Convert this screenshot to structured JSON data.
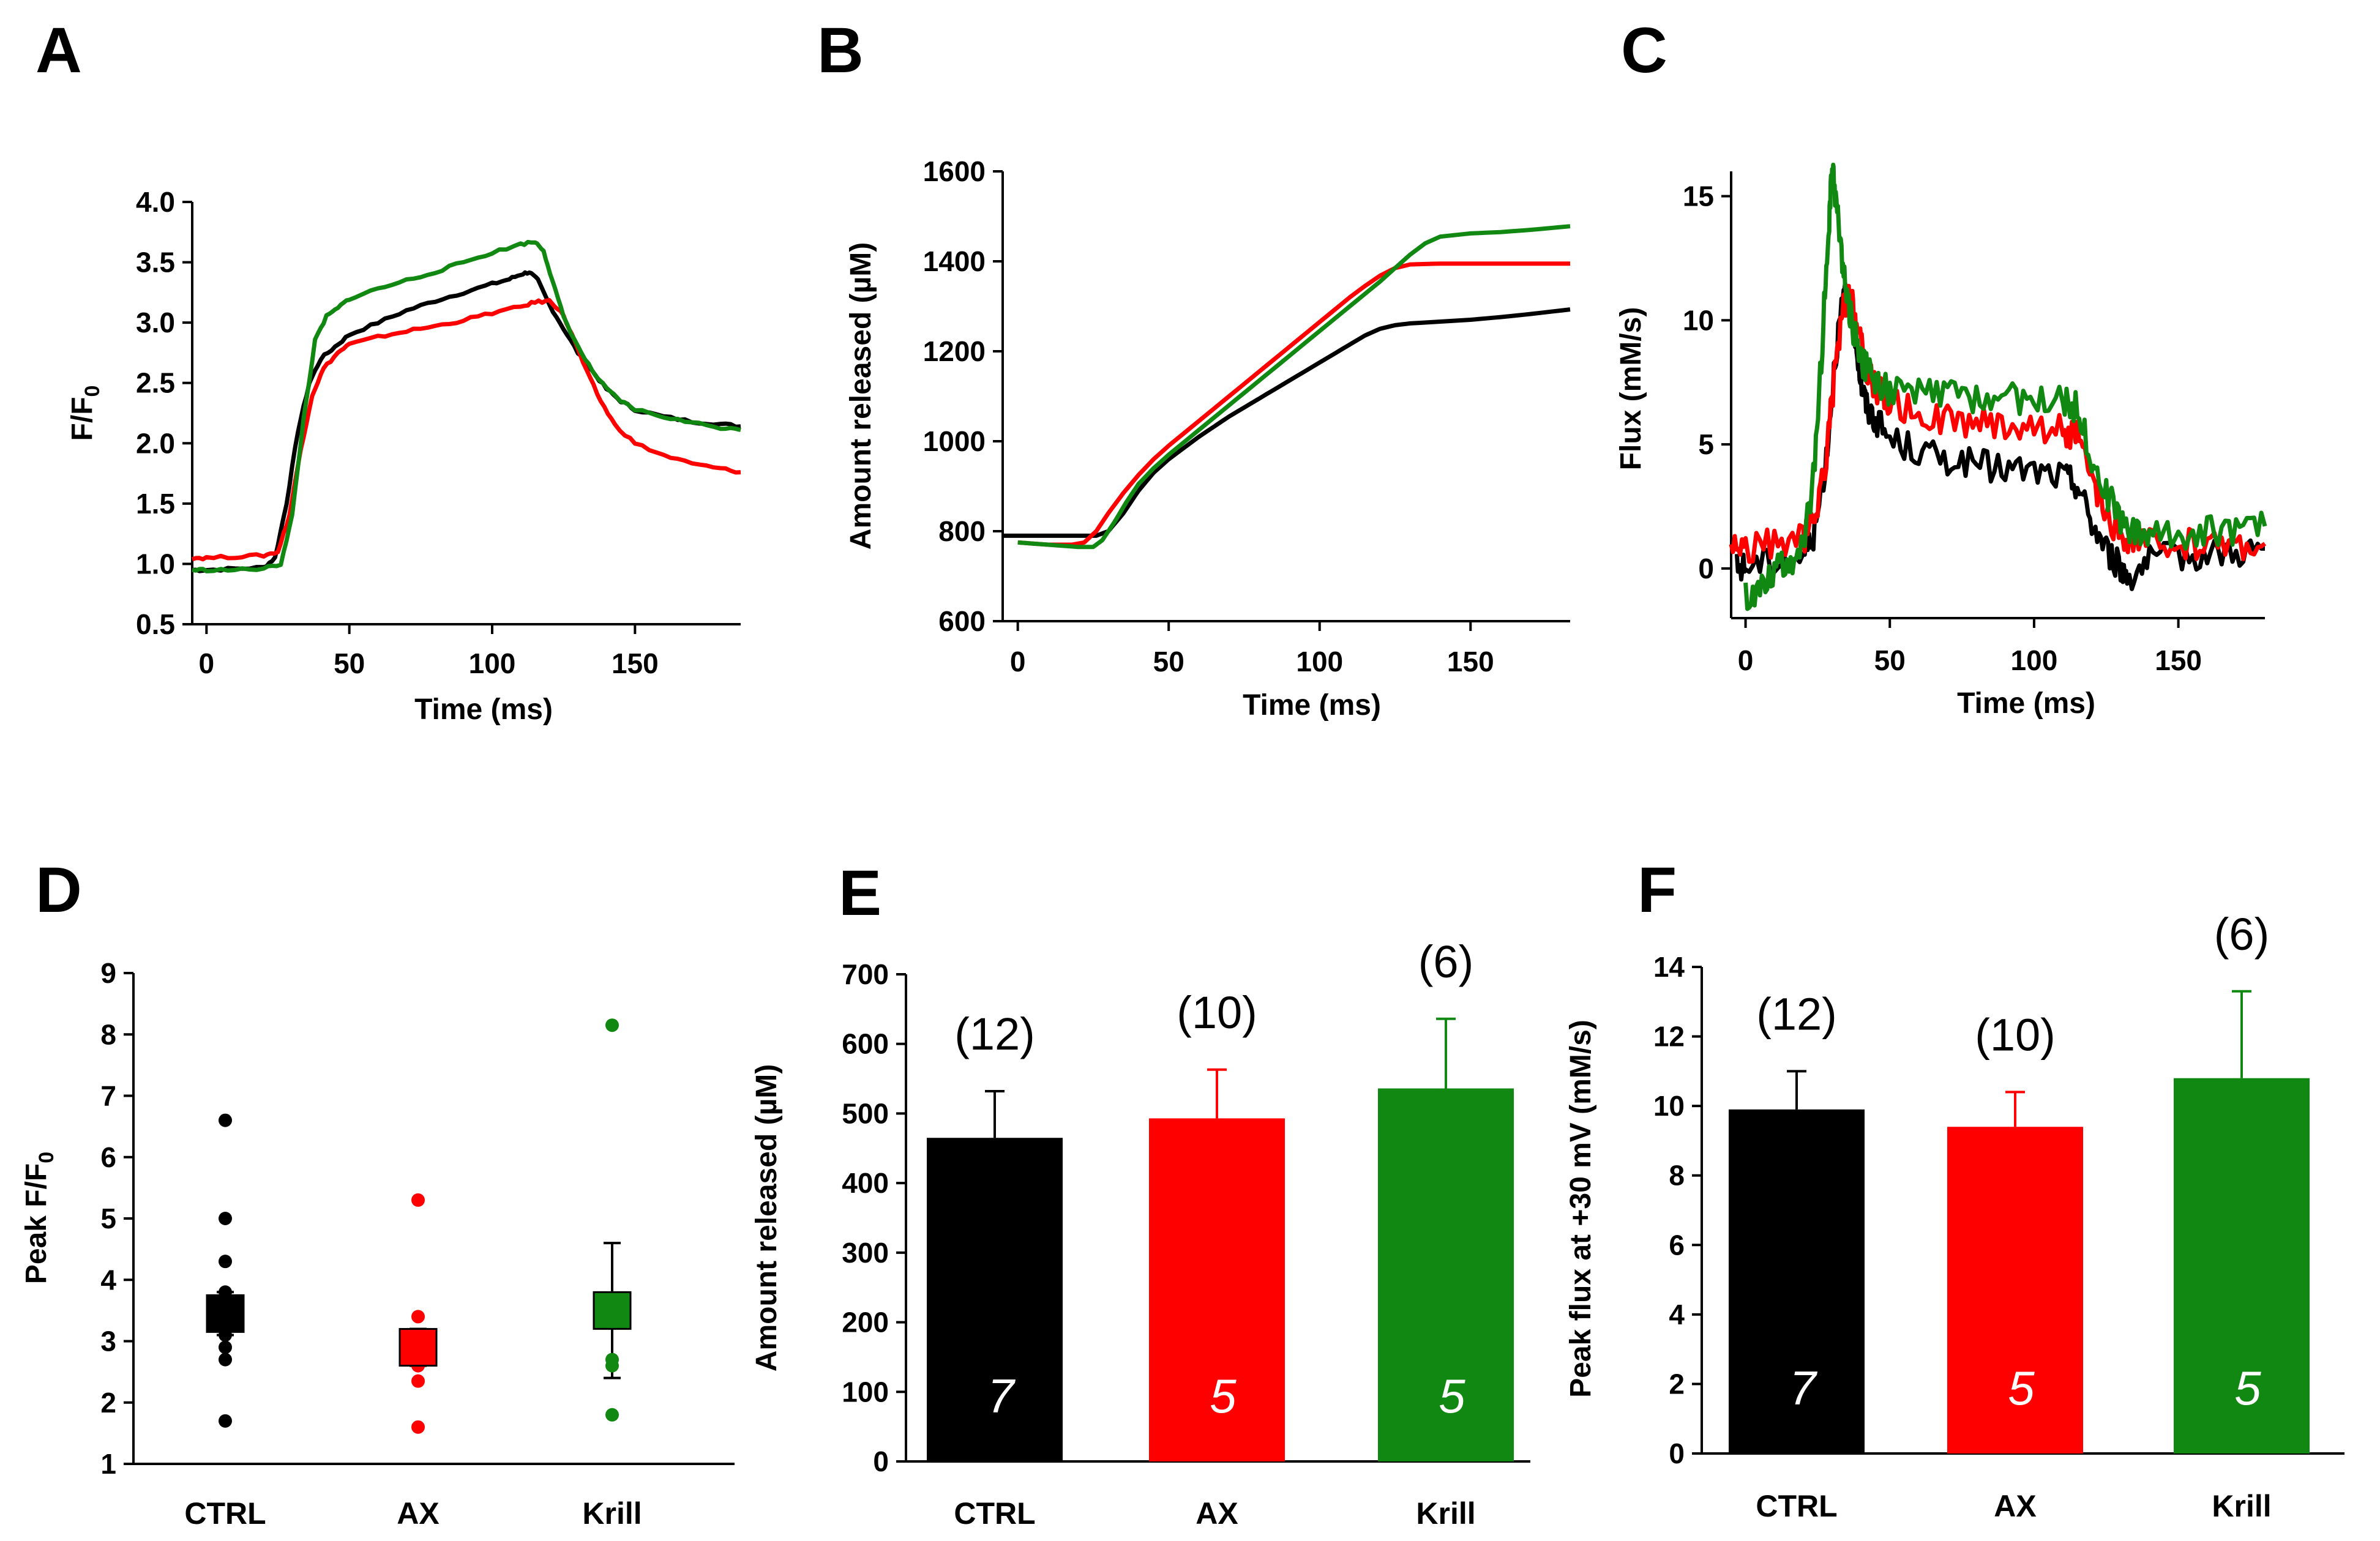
{
  "colors": {
    "CTRL": "#000000",
    "AX": "#ff0000",
    "Krill": "#118811"
  },
  "chart_data": [
    {
      "id": "A",
      "panel_label": "A",
      "type": "line",
      "xlabel": "Time (ms)",
      "ylabel": "F/F0",
      "ylabel_main": "F/F",
      "ylabel_sub": "0",
      "xlim": [
        -5,
        187
      ],
      "ylim": [
        0.5,
        4.0
      ],
      "xticks": [
        0,
        50,
        100,
        150
      ],
      "yticks": [
        0.5,
        1.0,
        1.5,
        2.0,
        2.5,
        3.0,
        3.5,
        4.0
      ],
      "ytick_labels": [
        "0.5",
        "1.0",
        "1.5",
        "2.0",
        "2.5",
        "3.0",
        "3.5",
        "4.0"
      ],
      "series": [
        {
          "name": "CTRL",
          "color": "#000000",
          "x": [
            -5,
            0,
            10,
            20,
            24,
            28,
            32,
            36,
            40,
            45,
            50,
            60,
            70,
            80,
            90,
            100,
            106,
            110,
            113,
            116,
            120,
            125,
            130,
            135,
            140,
            145,
            150,
            160,
            170,
            180,
            187
          ],
          "y": [
            0.95,
            0.95,
            0.96,
            0.97,
            1.05,
            1.5,
            2.1,
            2.5,
            2.7,
            2.8,
            2.9,
            3.0,
            3.1,
            3.18,
            3.25,
            3.32,
            3.36,
            3.4,
            3.42,
            3.35,
            3.15,
            2.95,
            2.75,
            2.6,
            2.45,
            2.35,
            2.28,
            2.22,
            2.18,
            2.16,
            2.14
          ]
        },
        {
          "name": "AX",
          "color": "#ff0000",
          "x": [
            -5,
            0,
            10,
            20,
            25,
            29,
            33,
            37,
            41,
            46,
            50,
            60,
            70,
            80,
            90,
            100,
            110,
            115,
            120,
            124,
            128,
            133,
            138,
            143,
            150,
            160,
            170,
            180,
            187
          ],
          "y": [
            1.05,
            1.05,
            1.06,
            1.07,
            1.1,
            1.4,
            1.95,
            2.4,
            2.62,
            2.75,
            2.82,
            2.88,
            2.93,
            2.97,
            3.02,
            3.08,
            3.13,
            3.17,
            3.18,
            3.1,
            2.9,
            2.6,
            2.35,
            2.15,
            2.0,
            1.9,
            1.83,
            1.79,
            1.76
          ]
        },
        {
          "name": "Krill",
          "color": "#118811",
          "x": [
            -5,
            0,
            10,
            20,
            26,
            30,
            34,
            38,
            42,
            46,
            50,
            60,
            70,
            80,
            90,
            100,
            110,
            115,
            118,
            121,
            125,
            130,
            135,
            140,
            145,
            150,
            160,
            170,
            180,
            187
          ],
          "y": [
            0.95,
            0.95,
            0.95,
            0.96,
            1.0,
            1.4,
            2.2,
            2.85,
            3.05,
            3.12,
            3.2,
            3.28,
            3.35,
            3.42,
            3.5,
            3.58,
            3.65,
            3.67,
            3.6,
            3.35,
            3.05,
            2.8,
            2.6,
            2.45,
            2.35,
            2.28,
            2.22,
            2.17,
            2.13,
            2.11
          ]
        }
      ]
    },
    {
      "id": "B",
      "panel_label": "B",
      "type": "line",
      "xlabel": "Time (ms)",
      "ylabel": "Amount released (µM)",
      "xlim": [
        -5,
        183
      ],
      "ylim": [
        600,
        1600
      ],
      "xticks": [
        0,
        50,
        100,
        150
      ],
      "yticks": [
        600,
        800,
        1000,
        1200,
        1400,
        1600
      ],
      "series": [
        {
          "name": "CTRL",
          "color": "#000000",
          "x": [
            -5,
            0,
            20,
            26,
            30,
            35,
            40,
            45,
            50,
            60,
            70,
            80,
            90,
            100,
            110,
            115,
            120,
            125,
            130,
            140,
            150,
            160,
            170,
            183
          ],
          "y": [
            790,
            790,
            790,
            790,
            800,
            840,
            890,
            930,
            960,
            1010,
            1055,
            1095,
            1135,
            1175,
            1215,
            1235,
            1250,
            1258,
            1262,
            1266,
            1270,
            1276,
            1283,
            1293
          ]
        },
        {
          "name": "AX",
          "color": "#ff0000",
          "x": [
            0,
            10,
            18,
            22,
            26,
            30,
            35,
            40,
            45,
            50,
            60,
            70,
            80,
            90,
            100,
            110,
            115,
            120,
            125,
            130,
            140,
            150,
            160,
            170,
            183
          ],
          "y": [
            775,
            770,
            770,
            775,
            800,
            840,
            885,
            925,
            960,
            990,
            1045,
            1100,
            1155,
            1210,
            1265,
            1320,
            1345,
            1368,
            1385,
            1393,
            1395,
            1395,
            1395,
            1395,
            1395
          ]
        },
        {
          "name": "Krill",
          "color": "#118811",
          "x": [
            0,
            10,
            20,
            25,
            28,
            32,
            36,
            40,
            45,
            50,
            60,
            70,
            80,
            90,
            100,
            110,
            120,
            125,
            130,
            135,
            140,
            150,
            160,
            170,
            183
          ],
          "y": [
            775,
            770,
            765,
            765,
            780,
            820,
            865,
            905,
            940,
            970,
            1025,
            1080,
            1135,
            1190,
            1245,
            1300,
            1355,
            1385,
            1415,
            1440,
            1455,
            1462,
            1465,
            1470,
            1478
          ]
        }
      ]
    },
    {
      "id": "C",
      "panel_label": "C",
      "type": "line",
      "xlabel": "Time (ms)",
      "ylabel": "Flux (mM/s)",
      "xlim": [
        -5,
        180
      ],
      "ylim": [
        -2,
        16
      ],
      "xticks": [
        0,
        50,
        100,
        150
      ],
      "yticks": [
        0,
        5,
        10,
        15
      ],
      "series": [
        {
          "name": "CTRL",
          "color": "#000000",
          "x": [
            -3,
            0,
            10,
            20,
            24,
            28,
            31,
            34,
            36,
            38,
            40,
            42,
            45,
            50,
            60,
            70,
            80,
            90,
            100,
            110,
            115,
            120,
            125,
            130,
            133,
            140,
            150,
            160,
            170,
            180
          ],
          "y": [
            0.0,
            0.1,
            0.3,
            0.5,
            1.5,
            4.5,
            8.5,
            11.0,
            10.5,
            9.5,
            7.5,
            6.5,
            6.0,
            5.2,
            4.7,
            4.4,
            4.2,
            4.0,
            3.9,
            3.7,
            3.4,
            1.8,
            0.8,
            0.0,
            -0.3,
            0.3,
            0.5,
            0.6,
            0.7,
            0.8
          ]
        },
        {
          "name": "AX",
          "color": "#ff0000",
          "x": [
            -5,
            0,
            10,
            20,
            24,
            28,
            31,
            34,
            36,
            38,
            40,
            42,
            45,
            50,
            60,
            70,
            80,
            90,
            100,
            110,
            115,
            120,
            125,
            130,
            135,
            140,
            150,
            160,
            170,
            180
          ],
          "y": [
            1.0,
            0.8,
            1.0,
            1.2,
            2.0,
            4.5,
            8.0,
            10.5,
            11.0,
            10.2,
            9.0,
            8.0,
            7.3,
            6.7,
            6.2,
            6.0,
            5.9,
            5.8,
            5.7,
            5.6,
            5.3,
            3.5,
            2.0,
            1.3,
            1.0,
            1.0,
            1.0,
            1.0,
            1.0,
            1.0
          ]
        },
        {
          "name": "Krill",
          "color": "#118811",
          "x": [
            0,
            5,
            10,
            15,
            20,
            24,
            27,
            29,
            30,
            31,
            33,
            35,
            37,
            40,
            43,
            46,
            50,
            60,
            70,
            80,
            90,
            100,
            110,
            115,
            120,
            125,
            130,
            135,
            140,
            150,
            160,
            170,
            180
          ],
          "y": [
            -1.2,
            -0.8,
            0.0,
            0.3,
            0.8,
            4.0,
            10.0,
            14.0,
            16.0,
            15.2,
            13.0,
            11.0,
            9.8,
            8.5,
            7.8,
            7.4,
            7.2,
            7.0,
            7.0,
            6.9,
            6.9,
            6.8,
            6.7,
            6.5,
            4.5,
            3.0,
            2.0,
            1.5,
            1.4,
            1.4,
            1.5,
            1.6,
            1.7
          ]
        }
      ]
    },
    {
      "id": "D",
      "panel_label": "D",
      "type": "scatter",
      "ylabel": "Peak F/F0",
      "ylabel_main": "Peak F/F",
      "ylabel_sub": "0",
      "ylim": [
        1,
        9
      ],
      "yticks": [
        1,
        2,
        3,
        4,
        5,
        6,
        7,
        8,
        9
      ],
      "categories": [
        "CTRL",
        "AX",
        "Krill"
      ],
      "groups": [
        {
          "name": "CTRL",
          "color": "#000000",
          "points": [
            6.6,
            5.0,
            4.3,
            3.8,
            3.6,
            3.4,
            3.3,
            3.1,
            2.9,
            2.7,
            1.7
          ],
          "mean": 3.45,
          "sem": 0.35
        },
        {
          "name": "AX",
          "color": "#ff0000",
          "points": [
            5.3,
            3.4,
            3.0,
            2.6,
            2.35,
            1.6
          ],
          "mean": 2.9,
          "sem": 0.3
        },
        {
          "name": "Krill",
          "color": "#118811",
          "points": [
            8.15,
            2.7,
            2.6,
            1.8
          ],
          "mean": 3.5,
          "sem": 1.1
        }
      ]
    },
    {
      "id": "E",
      "panel_label": "E",
      "type": "bar",
      "ylabel": "Amount released (µM)",
      "ylim": [
        0,
        700
      ],
      "yticks": [
        0,
        100,
        200,
        300,
        400,
        500,
        600,
        700
      ],
      "categories": [
        "CTRL",
        "AX",
        "Krill"
      ],
      "values": [
        465,
        493,
        536
      ],
      "errors": [
        67,
        70,
        100
      ],
      "n_cells": [
        "(12)",
        "(10)",
        "(6)"
      ],
      "n_animals": [
        "7",
        "5",
        "5"
      ],
      "colors": [
        "#000000",
        "#ff0000",
        "#118811"
      ]
    },
    {
      "id": "F",
      "panel_label": "F",
      "type": "bar",
      "ylabel": "Peak flux at +30 mV (mM/s)",
      "ylim": [
        0,
        14
      ],
      "yticks": [
        0,
        2,
        4,
        6,
        8,
        10,
        12,
        14
      ],
      "categories": [
        "CTRL",
        "AX",
        "Krill"
      ],
      "values": [
        9.9,
        9.4,
        10.8
      ],
      "errors": [
        1.1,
        1.0,
        2.5
      ],
      "n_cells": [
        "(12)",
        "(10)",
        "(6)"
      ],
      "n_animals": [
        "7",
        "5",
        "5"
      ],
      "colors": [
        "#000000",
        "#ff0000",
        "#118811"
      ]
    }
  ]
}
